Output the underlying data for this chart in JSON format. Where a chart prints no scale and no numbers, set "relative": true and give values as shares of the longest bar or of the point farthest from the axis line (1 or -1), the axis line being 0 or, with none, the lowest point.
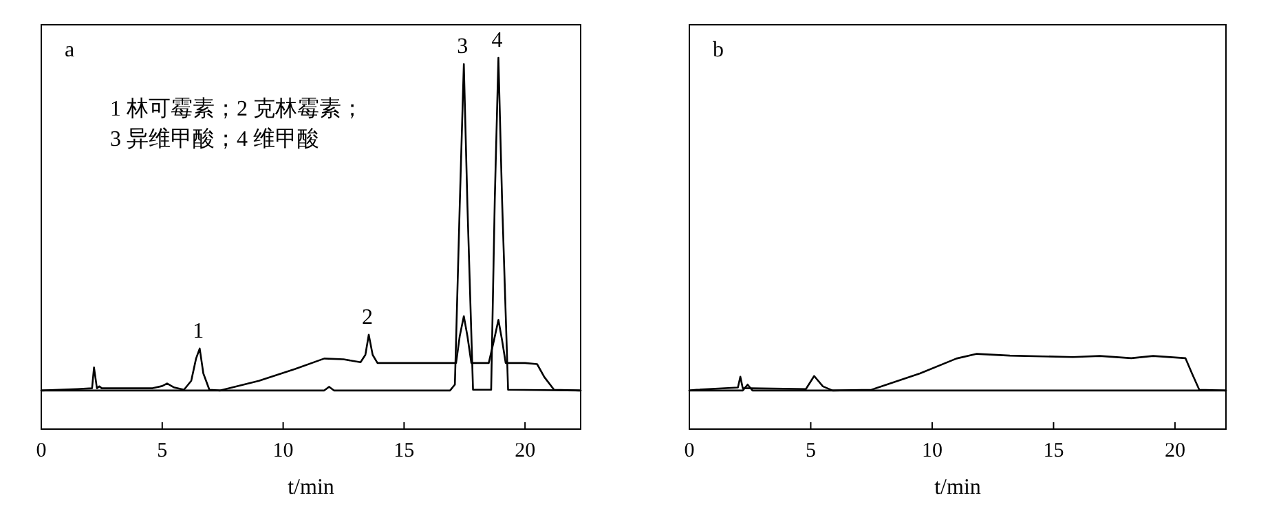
{
  "chart_data": [
    {
      "type": "line",
      "title": "a",
      "xlabel": "t/min",
      "xlim": [
        0,
        22.3
      ],
      "xticks": [
        0,
        5,
        10,
        15,
        20
      ],
      "relative": true,
      "tick_labels": "x",
      "grid": false,
      "marker": "none",
      "line_style": "solid",
      "series": [
        {
          "color": "#000000",
          "x": [
            0,
            1.5,
            2.1,
            2.18,
            2.3,
            2.4,
            2.5,
            4.6,
            5.0,
            5.2,
            5.5,
            5.9,
            6.2,
            6.4,
            6.55,
            6.7,
            6.95,
            7.4,
            9.0,
            10.5,
            11.7,
            12.5,
            13.2,
            13.4,
            13.54,
            13.7,
            13.9,
            15.5,
            17.15,
            17.3,
            17.47,
            17.62,
            17.78,
            18.5,
            18.72,
            18.9,
            19.05,
            19.2,
            20.0,
            20.5,
            20.8,
            21.2,
            22.3
          ],
          "values": [
            0.104,
            0.108,
            0.11,
            0.166,
            0.11,
            0.115,
            0.11,
            0.11,
            0.116,
            0.123,
            0.112,
            0.106,
            0.13,
            0.19,
            0.217,
            0.15,
            0.106,
            0.104,
            0.13,
            0.162,
            0.19,
            0.188,
            0.18,
            0.2,
            0.254,
            0.2,
            0.178,
            0.178,
            0.178,
            0.25,
            0.304,
            0.25,
            0.178,
            0.178,
            0.24,
            0.294,
            0.24,
            0.178,
            0.178,
            0.175,
            0.14,
            0.106,
            0.104
          ]
        },
        {
          "color": "#000000",
          "x": [
            0,
            5.0,
            11.7,
            11.9,
            12.1,
            16.9,
            17.1,
            17.3,
            17.47,
            17.62,
            17.85,
            18.6,
            18.75,
            18.9,
            19.05,
            19.3,
            22.3
          ],
          "values": [
            0.104,
            0.104,
            0.104,
            0.114,
            0.104,
            0.104,
            0.12,
            0.6,
            0.983,
            0.6,
            0.106,
            0.106,
            0.62,
            1.0,
            0.62,
            0.106,
            0.104
          ]
        }
      ],
      "annotations": [
        {
          "text": "1",
          "x": 6.55,
          "y": 0.217
        },
        {
          "text": "2",
          "x": 13.54,
          "y": 0.254
        },
        {
          "text": "3",
          "x": 17.47,
          "y": 0.983
        },
        {
          "text": "4",
          "x": 18.9,
          "y": 1.0
        },
        "1 林可霉素；2 克林霉素；",
        "3 异维甲酸；4 维甲酸"
      ]
    },
    {
      "type": "line",
      "title": "b",
      "xlabel": "t/min",
      "xlim": [
        0,
        22.1
      ],
      "xticks": [
        0,
        5,
        10,
        15,
        20
      ],
      "relative": true,
      "tick_labels": "x",
      "grid": false,
      "marker": "none",
      "line_style": "solid",
      "series": [
        {
          "color": "#000000",
          "x": [
            0,
            0.3,
            2.0,
            2.1,
            2.2,
            2.5,
            4.8,
            5.14,
            5.5,
            5.9,
            7.5,
            9.5,
            11.0,
            11.84,
            13.2,
            15.8,
            16.9,
            18.2,
            19.1,
            20.43,
            20.7,
            21.0,
            22.1
          ],
          "values": [
            0.513,
            0.523,
            0.553,
            0.696,
            0.543,
            0.543,
            0.533,
            0.706,
            0.568,
            0.513,
            0.523,
            0.74,
            0.938,
            1,
            0.977,
            0.958,
            0.972,
            0.943,
            0.972,
            0.943,
            0.74,
            0.523,
            0.513
          ]
        },
        {
          "color": "#000000",
          "x": [
            0,
            2.2,
            2.4,
            2.6,
            22.1
          ],
          "values": [
            0.513,
            0.513,
            0.592,
            0.513,
            0.513
          ]
        }
      ]
    }
  ]
}
